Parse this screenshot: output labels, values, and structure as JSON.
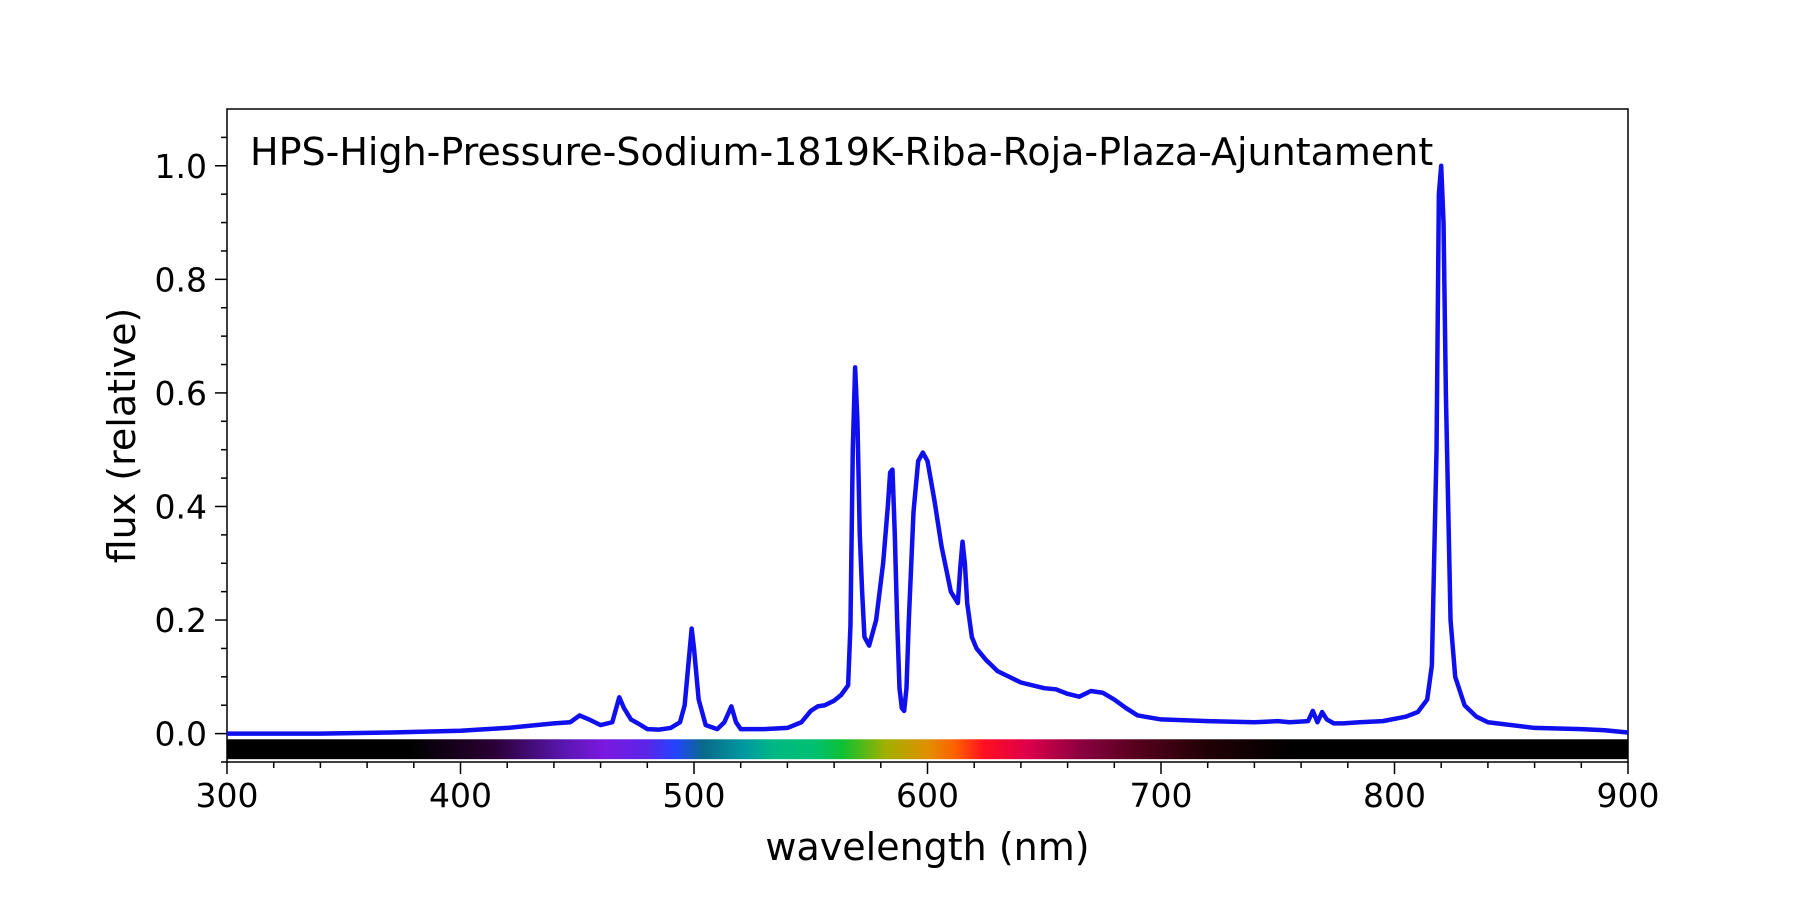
{
  "chart_data": {
    "type": "line",
    "title": "HPS-High-Pressure-Sodium-1819K-Riba-Roja-Plaza-Ajuntament",
    "xlabel": "wavelength (nm)",
    "ylabel": "flux (relative)",
    "xlim": [
      300,
      900
    ],
    "ylim": [
      -0.05,
      1.1
    ],
    "x_ticks": [
      300,
      400,
      500,
      600,
      700,
      800,
      900
    ],
    "y_ticks": [
      0.0,
      0.2,
      0.4,
      0.6,
      0.8,
      1.0
    ],
    "x_tick_labels": [
      "300",
      "400",
      "500",
      "600",
      "700",
      "800",
      "900"
    ],
    "y_tick_labels": [
      "0.0",
      "0.2",
      "0.4",
      "0.6",
      "0.8",
      "1.0"
    ],
    "grid": false,
    "legend": "none",
    "line_color": "#1010ee",
    "spectrum_band": true,
    "series": [
      {
        "x": [
          300,
          340,
          370,
          400,
          420,
          440,
          447,
          451,
          455,
          460,
          465,
          468,
          470,
          473,
          476,
          480,
          485,
          490,
          494,
          496,
          498,
          499,
          500,
          502,
          505,
          510,
          513,
          516,
          518,
          520,
          530,
          540,
          546,
          550,
          553,
          556,
          560,
          563,
          566,
          567,
          568,
          569,
          570,
          571,
          572,
          573,
          575,
          578,
          581,
          583,
          584,
          585,
          586,
          587,
          588,
          589,
          590,
          591,
          592,
          594,
          596,
          598,
          600,
          603,
          606,
          610,
          613,
          614,
          615,
          616,
          617,
          619,
          621,
          625,
          630,
          640,
          650,
          655,
          660,
          665,
          670,
          675,
          680,
          685,
          690,
          700,
          720,
          740,
          750,
          755,
          763,
          765,
          767,
          769,
          771,
          774,
          778,
          785,
          795,
          805,
          810,
          814,
          816,
          818,
          819,
          820,
          821,
          822,
          824,
          826,
          830,
          835,
          840,
          860,
          880,
          890,
          900
        ],
        "values": [
          0.0,
          0.0,
          0.002,
          0.005,
          0.01,
          0.018,
          0.02,
          0.032,
          0.025,
          0.015,
          0.02,
          0.064,
          0.045,
          0.025,
          0.018,
          0.008,
          0.007,
          0.01,
          0.02,
          0.05,
          0.14,
          0.185,
          0.15,
          0.06,
          0.015,
          0.008,
          0.02,
          0.048,
          0.02,
          0.008,
          0.008,
          0.01,
          0.02,
          0.04,
          0.048,
          0.05,
          0.058,
          0.068,
          0.085,
          0.19,
          0.5,
          0.645,
          0.55,
          0.35,
          0.25,
          0.17,
          0.155,
          0.2,
          0.3,
          0.4,
          0.46,
          0.465,
          0.35,
          0.2,
          0.08,
          0.045,
          0.04,
          0.08,
          0.2,
          0.39,
          0.48,
          0.495,
          0.48,
          0.41,
          0.33,
          0.25,
          0.23,
          0.29,
          0.338,
          0.3,
          0.23,
          0.17,
          0.15,
          0.13,
          0.11,
          0.09,
          0.08,
          0.078,
          0.07,
          0.065,
          0.075,
          0.072,
          0.06,
          0.045,
          0.032,
          0.025,
          0.022,
          0.02,
          0.022,
          0.02,
          0.022,
          0.04,
          0.02,
          0.038,
          0.025,
          0.018,
          0.018,
          0.02,
          0.022,
          0.03,
          0.038,
          0.06,
          0.12,
          0.5,
          0.95,
          1.0,
          0.9,
          0.6,
          0.2,
          0.1,
          0.05,
          0.03,
          0.02,
          0.01,
          0.008,
          0.006,
          0.002
        ]
      }
    ]
  }
}
